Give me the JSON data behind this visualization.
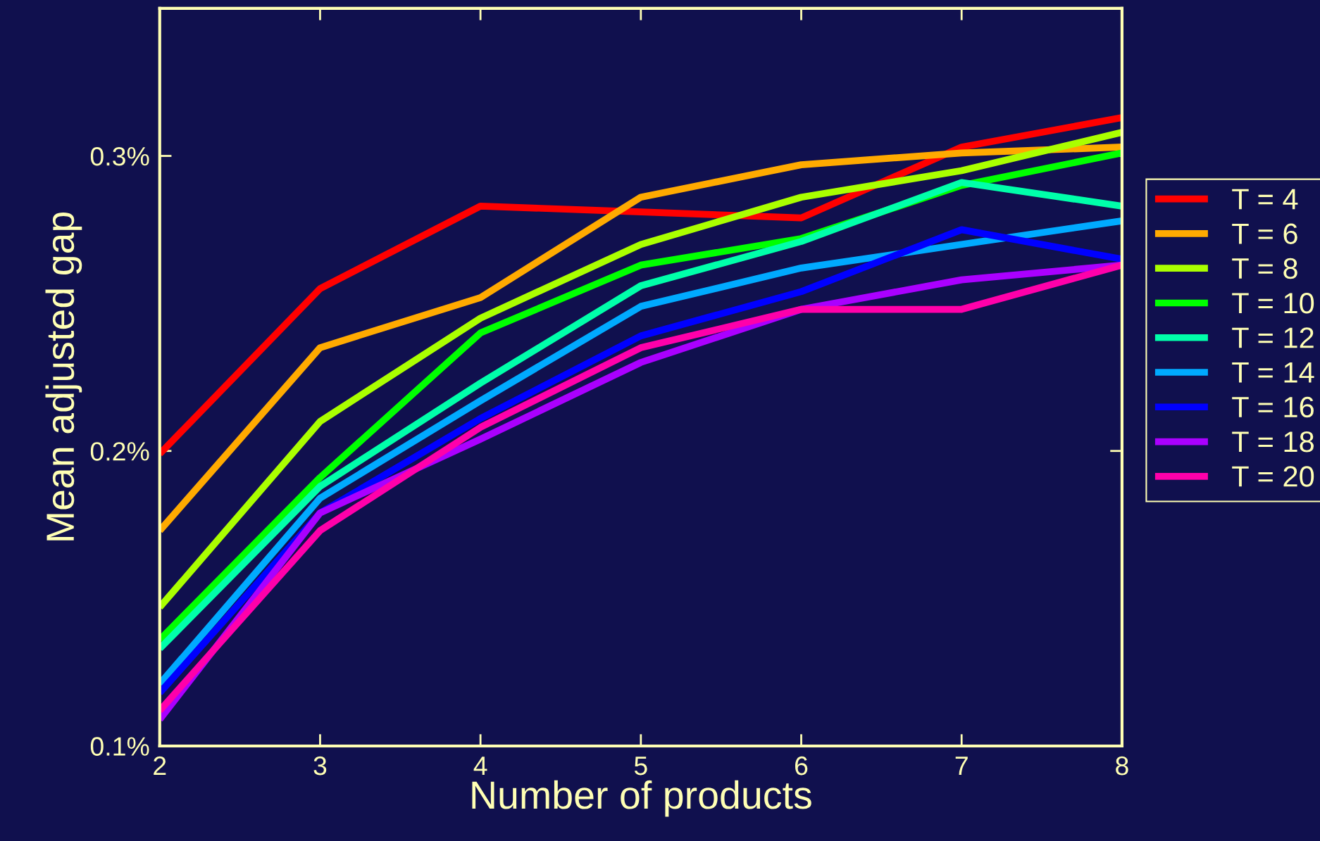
{
  "chart_data": {
    "type": "line",
    "xlabel": "Number of products",
    "ylabel": "Mean adjusted gap",
    "x": [
      2,
      3,
      4,
      5,
      6,
      7,
      8
    ],
    "xlim": [
      2,
      8
    ],
    "xticks": [
      2,
      3,
      4,
      5,
      6,
      7,
      8
    ],
    "ylim": [
      0.1,
      0.35
    ],
    "yticks": [
      {
        "value": 0.1,
        "label": "0.1%"
      },
      {
        "value": 0.2,
        "label": "0.2%"
      },
      {
        "value": 0.3,
        "label": "0.3%"
      }
    ],
    "grid": false,
    "legend": "right",
    "marker": "none",
    "line_style": "solid",
    "series": [
      {
        "name": "T = 4",
        "color": "#ff0000",
        "values": [
          0.199,
          0.255,
          0.283,
          0.281,
          0.279,
          0.303,
          0.313
        ]
      },
      {
        "name": "T = 6",
        "color": "#ffaa00",
        "values": [
          0.173,
          0.235,
          0.252,
          0.286,
          0.297,
          0.301,
          0.303
        ]
      },
      {
        "name": "T = 8",
        "color": "#aaff00",
        "values": [
          0.147,
          0.21,
          0.245,
          0.27,
          0.286,
          0.295,
          0.308
        ]
      },
      {
        "name": "T = 10",
        "color": "#00ff00",
        "values": [
          0.136,
          0.191,
          0.24,
          0.263,
          0.272,
          0.29,
          0.301
        ]
      },
      {
        "name": "T = 12",
        "color": "#00ffaa",
        "values": [
          0.133,
          0.188,
          0.223,
          0.256,
          0.271,
          0.291,
          0.283
        ]
      },
      {
        "name": "T = 14",
        "color": "#00aaff",
        "values": [
          0.121,
          0.184,
          0.217,
          0.249,
          0.262,
          0.27,
          0.278
        ]
      },
      {
        "name": "T = 16",
        "color": "#0000ff",
        "values": [
          0.118,
          0.179,
          0.211,
          0.239,
          0.254,
          0.275,
          0.265
        ]
      },
      {
        "name": "T = 18",
        "color": "#aa00ff",
        "values": [
          0.109,
          0.179,
          0.204,
          0.23,
          0.248,
          0.258,
          0.263
        ]
      },
      {
        "name": "T = 20",
        "color": "#ff00aa",
        "values": [
          0.112,
          0.173,
          0.208,
          0.235,
          0.248,
          0.248,
          0.263
        ]
      }
    ]
  }
}
